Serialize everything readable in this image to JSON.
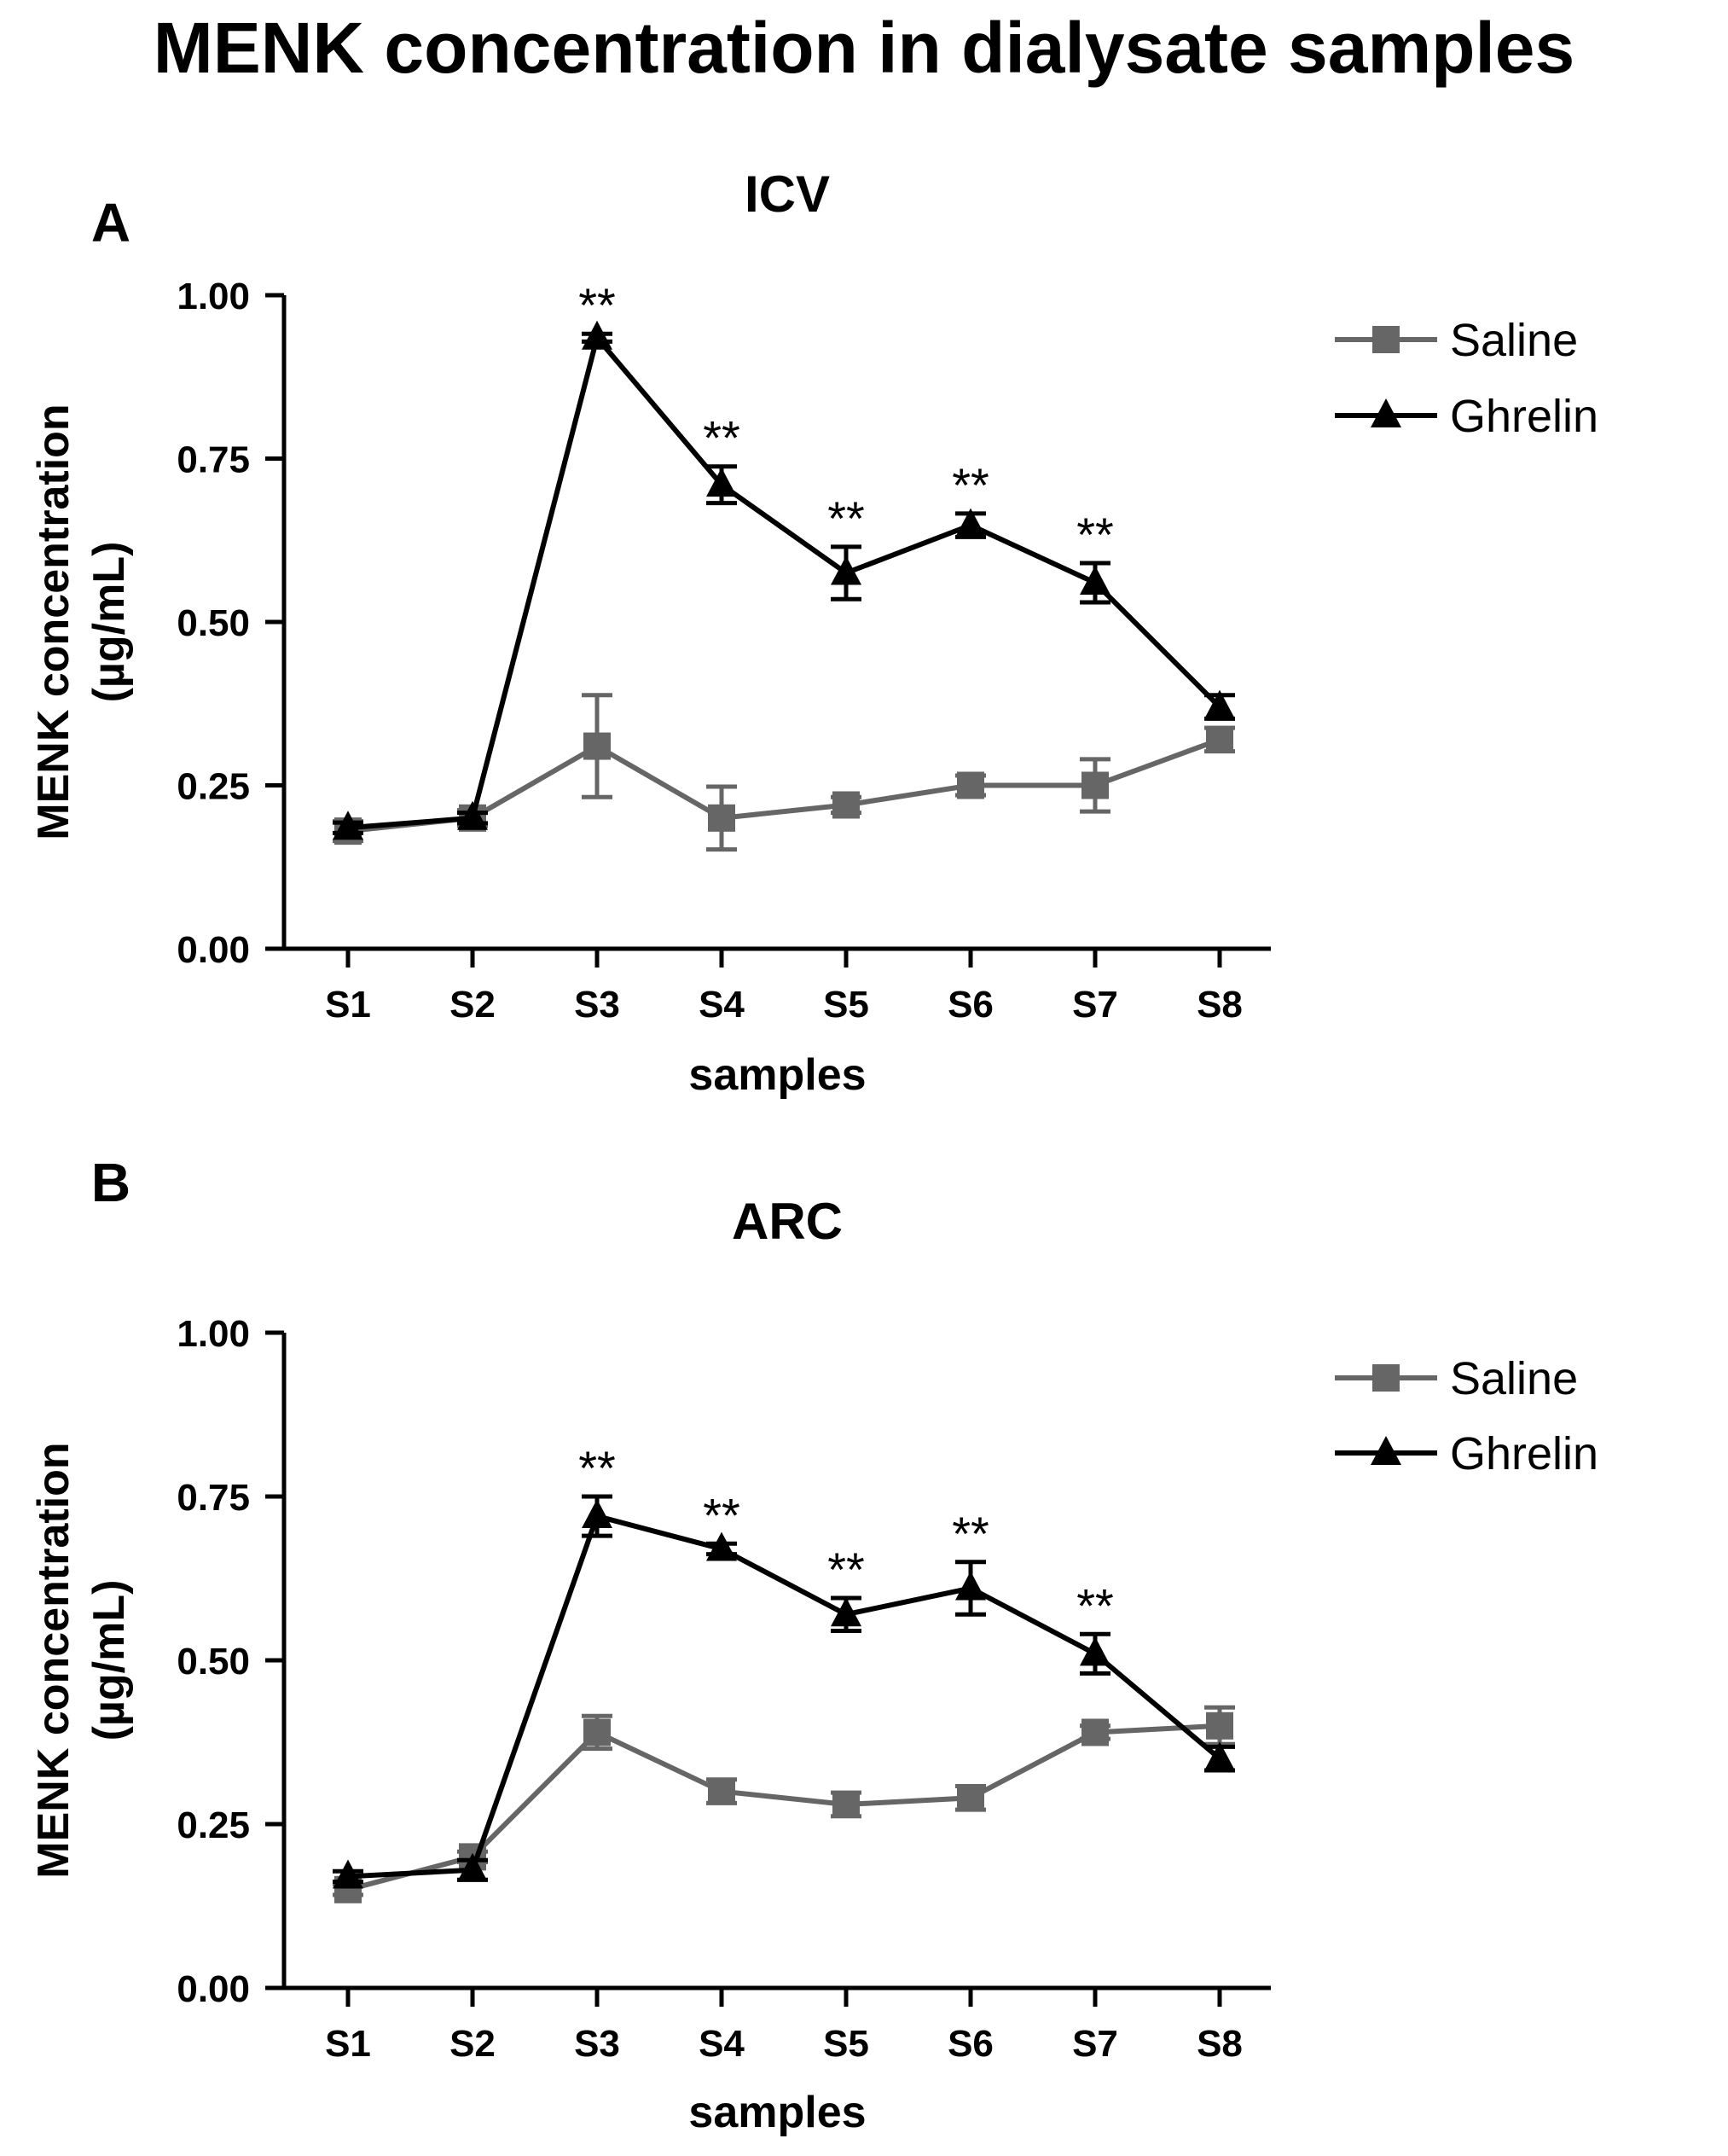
{
  "figure_title": "MENK concentration in dialysate samples",
  "chart_data": [
    {
      "type": "line",
      "panel_letter": "A",
      "title": "ICV",
      "xlabel": "samples",
      "ylabel_line1": "MENK concentration",
      "ylabel_line2": "(µg/mL)",
      "categories": [
        "S1",
        "S2",
        "S3",
        "S4",
        "S5",
        "S6",
        "S7",
        "S8"
      ],
      "ylim": [
        0,
        1
      ],
      "yticks": [
        "0.00",
        "0.25",
        "0.50",
        "0.75",
        "1.00"
      ],
      "legend_position": "top-right",
      "series": [
        {
          "name": "Saline",
          "marker": "square",
          "color": "#666666",
          "values": [
            0.18,
            0.2,
            0.31,
            0.2,
            0.22,
            0.25,
            0.25,
            0.32
          ],
          "errors": [
            0.015,
            0.012,
            0.078,
            0.048,
            0.012,
            0.015,
            0.04,
            0.018
          ]
        },
        {
          "name": "Ghrelin",
          "marker": "triangle",
          "color": "#000000",
          "values": [
            0.185,
            0.2,
            0.935,
            0.71,
            0.575,
            0.648,
            0.56,
            0.37
          ],
          "errors": [
            0.008,
            0.008,
            0.006,
            0.028,
            0.04,
            0.018,
            0.03,
            0.018
          ]
        }
      ],
      "annotations": [
        {
          "category": "S3",
          "text": "**"
        },
        {
          "category": "S4",
          "text": "**"
        },
        {
          "category": "S5",
          "text": "**"
        },
        {
          "category": "S6",
          "text": "**"
        },
        {
          "category": "S7",
          "text": "**"
        }
      ]
    },
    {
      "type": "line",
      "panel_letter": "B",
      "title": "ARC",
      "xlabel": "samples",
      "ylabel_line1": "MENK concentration",
      "ylabel_line2": "(µg/mL)",
      "categories": [
        "S1",
        "S2",
        "S3",
        "S4",
        "S5",
        "S6",
        "S7",
        "S8"
      ],
      "ylim": [
        0,
        1
      ],
      "yticks": [
        "0.00",
        "0.25",
        "0.50",
        "0.75",
        "1.00"
      ],
      "legend_position": "top-right",
      "series": [
        {
          "name": "Saline",
          "marker": "square",
          "color": "#666666",
          "values": [
            0.15,
            0.2,
            0.39,
            0.3,
            0.28,
            0.29,
            0.39,
            0.4
          ],
          "errors": [
            0.008,
            0.008,
            0.025,
            0.018,
            0.018,
            0.018,
            0.01,
            0.028
          ]
        },
        {
          "name": "Ghrelin",
          "marker": "triangle",
          "color": "#000000",
          "values": [
            0.17,
            0.18,
            0.72,
            0.67,
            0.57,
            0.61,
            0.51,
            0.35
          ],
          "errors": [
            0.008,
            0.015,
            0.03,
            0.008,
            0.025,
            0.04,
            0.03,
            0.018
          ]
        }
      ],
      "annotations": [
        {
          "category": "S3",
          "text": "**"
        },
        {
          "category": "S4",
          "text": "**"
        },
        {
          "category": "S5",
          "text": "**"
        },
        {
          "category": "S6",
          "text": "**"
        },
        {
          "category": "S7",
          "text": "**"
        }
      ]
    }
  ]
}
